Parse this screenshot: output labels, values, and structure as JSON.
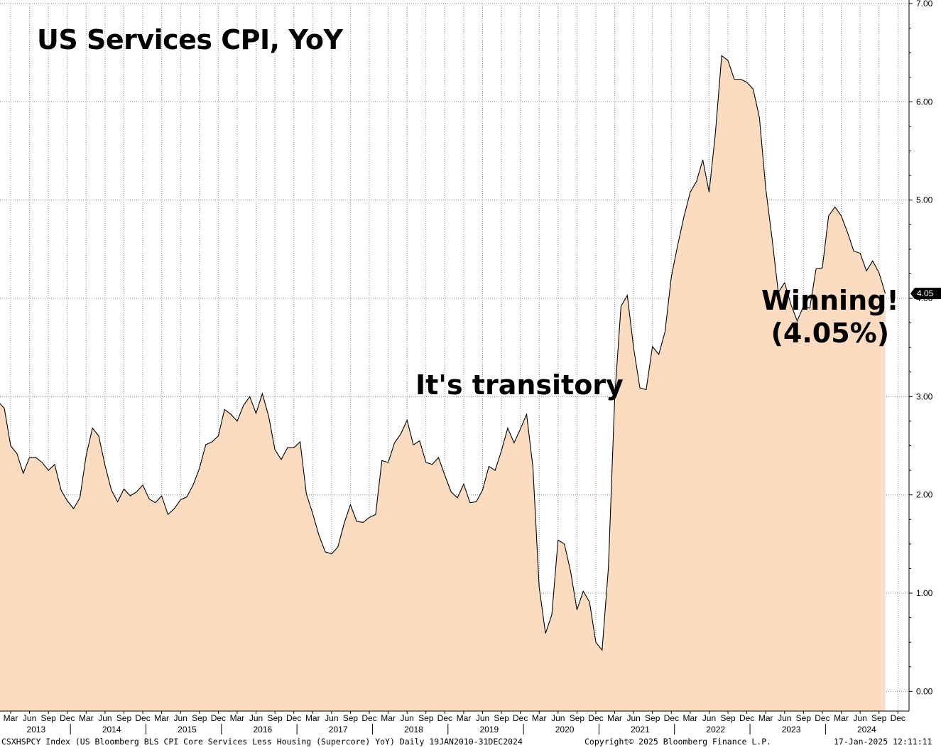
{
  "chart_data": {
    "type": "area",
    "title": "US Services CPI, YoY",
    "frequency": "monthly",
    "x_start": "2013-01",
    "x_end": "2024-12",
    "ylim": [
      -0.2,
      7.0
    ],
    "y_ticks": [
      "0.00",
      "1.00",
      "2.00",
      "3.00",
      "4.00",
      "5.00",
      "6.00",
      "7.00"
    ],
    "y_axis_side": "right",
    "grid": "dotted",
    "last_value_label": "4.05",
    "month_tick_labels": [
      "Mar",
      "Jun",
      "Sep",
      "Dec"
    ],
    "year_labels": [
      "2013",
      "2014",
      "2015",
      "2016",
      "2017",
      "2018",
      "2019",
      "2020",
      "2021",
      "2022",
      "2023",
      "2024"
    ],
    "series": [
      {
        "values": [
          2.95,
          2.88,
          2.5,
          2.42,
          2.22,
          2.38,
          2.38,
          2.33,
          2.25,
          2.31,
          2.05,
          1.94,
          1.86,
          1.97,
          2.4,
          2.68,
          2.6,
          2.3,
          2.05,
          1.93,
          2.06,
          1.99,
          2.03,
          2.1,
          1.96,
          1.92,
          1.99,
          1.8,
          1.86,
          1.95,
          1.98,
          2.1,
          2.27,
          2.51,
          2.54,
          2.6,
          2.87,
          2.82,
          2.75,
          2.91,
          3.0,
          2.83,
          3.03,
          2.8,
          2.46,
          2.36,
          2.48,
          2.48,
          2.54,
          2.01,
          1.81,
          1.59,
          1.42,
          1.4,
          1.47,
          1.71,
          1.9,
          1.73,
          1.72,
          1.77,
          1.8,
          2.35,
          2.33,
          2.53,
          2.62,
          2.76,
          2.51,
          2.55,
          2.33,
          2.31,
          2.38,
          2.2,
          2.03,
          1.97,
          2.11,
          1.92,
          1.93,
          2.05,
          2.29,
          2.25,
          2.45,
          2.68,
          2.53,
          2.67,
          2.82,
          2.28,
          1.06,
          0.59,
          0.78,
          1.54,
          1.5,
          1.22,
          0.83,
          1.02,
          0.91,
          0.5,
          0.42,
          1.26,
          3.0,
          3.92,
          4.03,
          3.5,
          3.09,
          3.07,
          3.51,
          3.43,
          3.66,
          4.22,
          4.54,
          4.83,
          5.08,
          5.19,
          5.41,
          5.08,
          5.68,
          6.47,
          6.42,
          6.23,
          6.23,
          6.2,
          6.13,
          5.84,
          5.12,
          4.61,
          4.06,
          4.16,
          3.94,
          3.77,
          3.92,
          3.9,
          4.3,
          4.31,
          4.84,
          4.93,
          4.84,
          4.67,
          4.48,
          4.46,
          4.28,
          4.38,
          4.26,
          4.05
        ]
      }
    ],
    "annotations": [
      {
        "text": "It's transitory"
      },
      {
        "text": "Winning!"
      },
      {
        "text": "(4.05%)"
      }
    ]
  },
  "footer": {
    "left": "CSXHSPCY Index (US Bloomberg BLS CPI Core Services Less Housing (Supercore) YoY)  Daily 19JAN2010-31DEC2024",
    "mid": "Copyright© 2025 Bloomberg Finance L.P.",
    "right": "17-Jan-2025 12:11:11"
  },
  "colors": {
    "fill": "#fbdcc0",
    "line": "#000000",
    "grid": "#8a8a8a",
    "last_value_bg": "#000000",
    "last_value_text": "#ffffff"
  }
}
